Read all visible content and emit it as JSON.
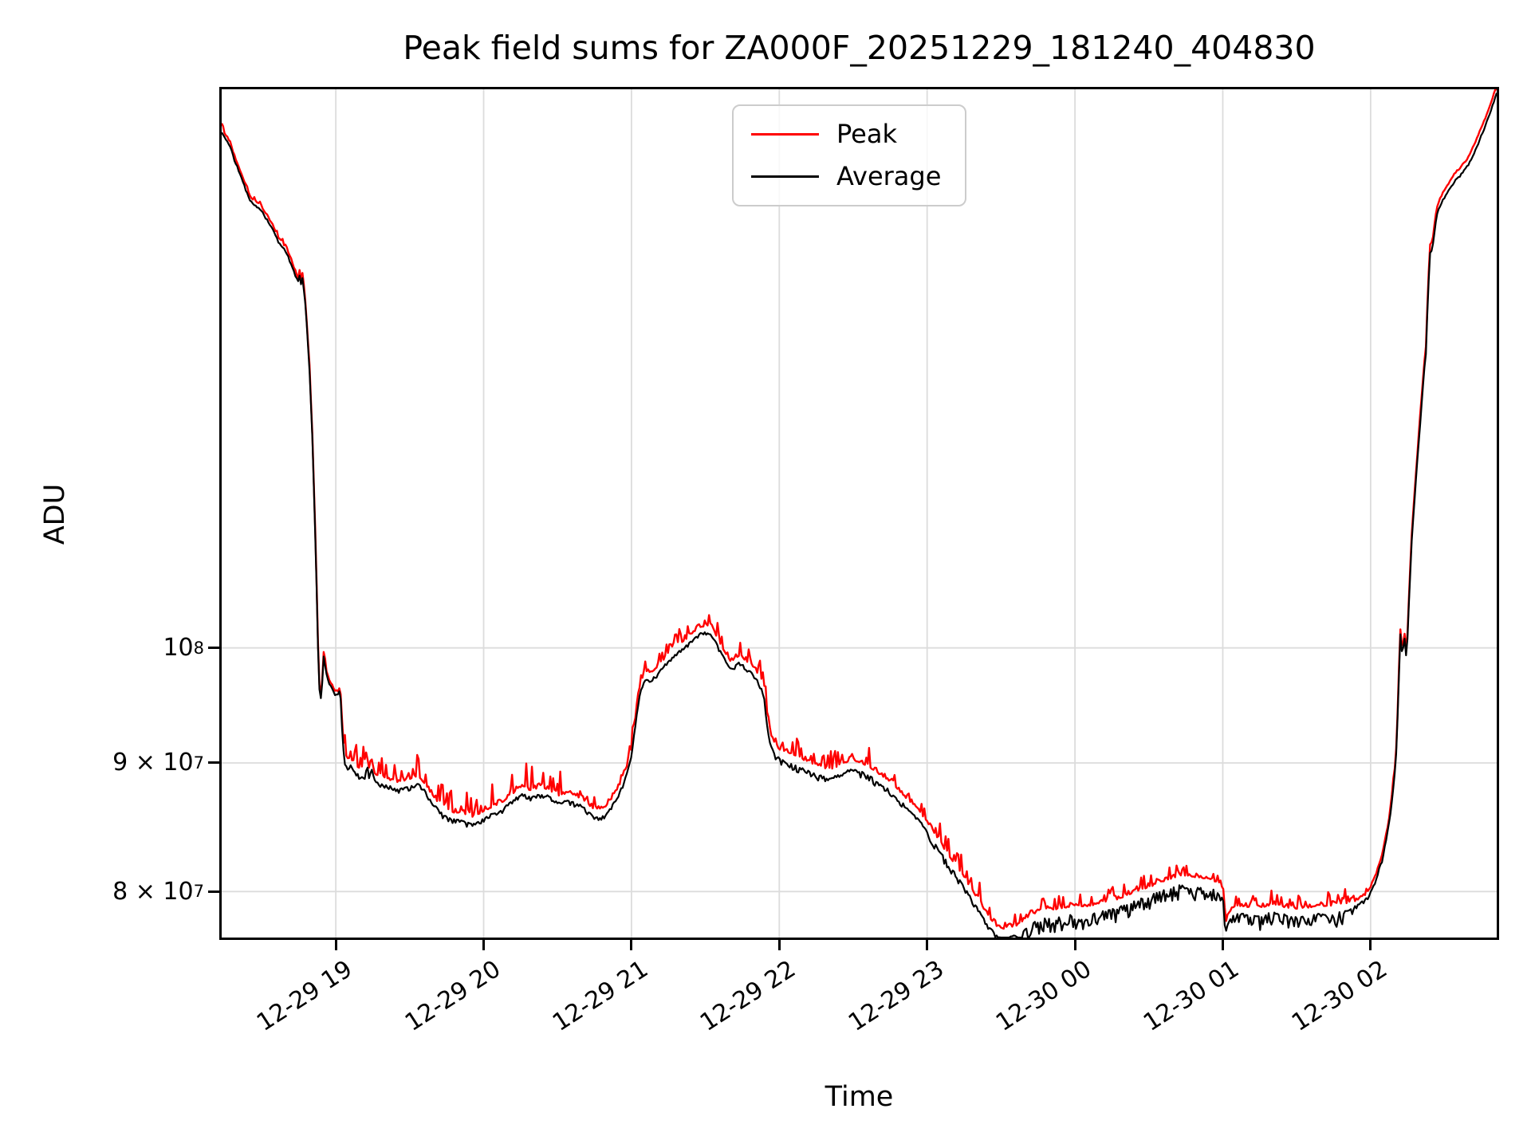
{
  "title": "Peak field sums for ZA000F_20251229_181240_404830",
  "colors": {
    "peak": "#ff0000",
    "average": "#000000",
    "grid": "#dcdcdc",
    "spine": "#000000",
    "legend_border": "#cccccc",
    "background": "#ffffff"
  },
  "chart_data": {
    "type": "line",
    "title": "Peak field sums for ZA000F_20251229_181240_404830",
    "xlabel": "Time",
    "ylabel": "ADU",
    "yscale": "log",
    "grid": true,
    "x_unit": "decimal hours (values >= 24 are Dec 30)",
    "value_unit": "1e7 ADU",
    "xlim": [
      18.228,
      26.853
    ],
    "ylim_1e7": [
      7.67,
      16.68
    ],
    "x_ticks": [
      {
        "t": 19,
        "label": "12-29 19"
      },
      {
        "t": 20,
        "label": "12-29 20"
      },
      {
        "t": 21,
        "label": "12-29 21"
      },
      {
        "t": 22,
        "label": "12-29 22"
      },
      {
        "t": 23,
        "label": "12-29 23"
      },
      {
        "t": 24,
        "label": "12-30 00"
      },
      {
        "t": 25,
        "label": "12-30 01"
      },
      {
        "t": 26,
        "label": "12-30 02"
      }
    ],
    "y_ticks": [
      {
        "value_1e7": 8,
        "base": "8 × 10",
        "exp": "7"
      },
      {
        "value_1e7": 9,
        "base": "9 × 10",
        "exp": "7"
      },
      {
        "value_1e7": 10,
        "base": "10",
        "exp": "8"
      }
    ],
    "legend": {
      "position": "upper center",
      "entries": [
        {
          "label": "Peak",
          "color": "#ff0000"
        },
        {
          "label": "Average",
          "color": "#000000"
        }
      ]
    },
    "series": [
      {
        "name": "Average",
        "color": "#000000",
        "trend_points_t_v1e7": [
          [
            18.228,
            16.05
          ],
          [
            18.26,
            15.92
          ],
          [
            18.287,
            15.83
          ],
          [
            18.31,
            15.66
          ],
          [
            18.34,
            15.51
          ],
          [
            18.37,
            15.33
          ],
          [
            18.4,
            15.18
          ],
          [
            18.42,
            15.07
          ],
          [
            18.45,
            15.01
          ],
          [
            18.48,
            14.97
          ],
          [
            18.5,
            14.92
          ],
          [
            18.53,
            14.82
          ],
          [
            18.56,
            14.72
          ],
          [
            18.585,
            14.62
          ],
          [
            18.61,
            14.52
          ],
          [
            18.64,
            14.44
          ],
          [
            18.67,
            14.36
          ],
          [
            18.69,
            14.26
          ],
          [
            18.71,
            14.16
          ],
          [
            18.725,
            14.08
          ],
          [
            18.745,
            13.99
          ],
          [
            18.755,
            14.07
          ],
          [
            18.765,
            13.96
          ],
          [
            18.775,
            14.04
          ],
          [
            18.79,
            13.81
          ],
          [
            18.8,
            13.55
          ],
          [
            18.81,
            13.26
          ],
          [
            18.825,
            12.8
          ],
          [
            18.84,
            12.2
          ],
          [
            18.855,
            11.4
          ],
          [
            18.87,
            10.6
          ],
          [
            18.88,
            10.0
          ],
          [
            18.89,
            9.62
          ],
          [
            18.9,
            9.56
          ],
          [
            18.91,
            9.7
          ],
          [
            18.92,
            10.0
          ],
          [
            18.93,
            9.8
          ],
          [
            18.95,
            9.7
          ],
          [
            18.97,
            9.65
          ],
          [
            18.99,
            9.6
          ],
          [
            19.01,
            9.58
          ],
          [
            19.025,
            9.62
          ],
          [
            19.035,
            9.55
          ],
          [
            19.045,
            9.2
          ],
          [
            19.06,
            9.0
          ],
          [
            19.075,
            8.97
          ],
          [
            19.095,
            8.99
          ],
          [
            19.12,
            8.95
          ],
          [
            19.15,
            8.91
          ],
          [
            19.18,
            8.88
          ],
          [
            19.2,
            8.87
          ],
          [
            19.21,
            9.06
          ],
          [
            19.22,
            8.89
          ],
          [
            19.245,
            8.97
          ],
          [
            19.26,
            8.86
          ],
          [
            19.3,
            8.83
          ],
          [
            19.36,
            8.81
          ],
          [
            19.42,
            8.79
          ],
          [
            19.5,
            8.81
          ],
          [
            19.56,
            8.83
          ],
          [
            19.6,
            8.78
          ],
          [
            19.66,
            8.67
          ],
          [
            19.72,
            8.59
          ],
          [
            19.78,
            8.55
          ],
          [
            19.86,
            8.54
          ],
          [
            19.92,
            8.51
          ],
          [
            19.96,
            8.53
          ],
          [
            20.02,
            8.57
          ],
          [
            20.08,
            8.6
          ],
          [
            20.14,
            8.64
          ],
          [
            20.2,
            8.7
          ],
          [
            20.26,
            8.76
          ],
          [
            20.32,
            8.72
          ],
          [
            20.38,
            8.75
          ],
          [
            20.44,
            8.73
          ],
          [
            20.5,
            8.68
          ],
          [
            20.56,
            8.7
          ],
          [
            20.62,
            8.68
          ],
          [
            20.68,
            8.64
          ],
          [
            20.74,
            8.58
          ],
          [
            20.8,
            8.56
          ],
          [
            20.85,
            8.63
          ],
          [
            20.9,
            8.72
          ],
          [
            20.94,
            8.82
          ],
          [
            20.97,
            8.92
          ],
          [
            21.0,
            9.06
          ],
          [
            21.02,
            9.26
          ],
          [
            21.045,
            9.5
          ],
          [
            21.06,
            9.62
          ],
          [
            21.08,
            9.69
          ],
          [
            21.11,
            9.72
          ],
          [
            21.15,
            9.73
          ],
          [
            21.18,
            9.77
          ],
          [
            21.21,
            9.82
          ],
          [
            21.25,
            9.88
          ],
          [
            21.29,
            9.93
          ],
          [
            21.33,
            9.98
          ],
          [
            21.37,
            10.02
          ],
          [
            21.42,
            10.08
          ],
          [
            21.46,
            10.13
          ],
          [
            21.5,
            10.14
          ],
          [
            21.54,
            10.13
          ],
          [
            21.58,
            10.03
          ],
          [
            21.62,
            9.93
          ],
          [
            21.67,
            9.81
          ],
          [
            21.7,
            9.84
          ],
          [
            21.73,
            9.87
          ],
          [
            21.76,
            9.84
          ],
          [
            21.79,
            9.8
          ],
          [
            21.83,
            9.75
          ],
          [
            21.86,
            9.7
          ],
          [
            21.895,
            9.58
          ],
          [
            21.92,
            9.32
          ],
          [
            21.945,
            9.14
          ],
          [
            21.97,
            9.07
          ],
          [
            22.0,
            9.04
          ],
          [
            22.05,
            9.01
          ],
          [
            22.1,
            8.99
          ],
          [
            22.15,
            8.96
          ],
          [
            22.21,
            8.93
          ],
          [
            22.27,
            8.9
          ],
          [
            22.33,
            8.87
          ],
          [
            22.4,
            8.9
          ],
          [
            22.48,
            8.95
          ],
          [
            22.53,
            8.94
          ],
          [
            22.6,
            8.9
          ],
          [
            22.66,
            8.85
          ],
          [
            22.71,
            8.81
          ],
          [
            22.77,
            8.76
          ],
          [
            22.82,
            8.69
          ],
          [
            22.88,
            8.62
          ],
          [
            22.94,
            8.55
          ],
          [
            23.0,
            8.46
          ],
          [
            23.07,
            8.33
          ],
          [
            23.14,
            8.21
          ],
          [
            23.22,
            8.09
          ],
          [
            23.29,
            7.97
          ],
          [
            23.36,
            7.85
          ],
          [
            23.42,
            7.75
          ],
          [
            23.47,
            7.69
          ],
          [
            23.52,
            7.67
          ],
          [
            23.58,
            7.68
          ],
          [
            23.64,
            7.71
          ],
          [
            23.7,
            7.77
          ],
          [
            23.79,
            7.8
          ],
          [
            23.88,
            7.81
          ],
          [
            23.99,
            7.83
          ],
          [
            24.1,
            7.83
          ],
          [
            24.19,
            7.86
          ],
          [
            24.29,
            7.88
          ],
          [
            24.4,
            7.93
          ],
          [
            24.51,
            7.97
          ],
          [
            24.62,
            8.02
          ],
          [
            24.73,
            8.05
          ],
          [
            24.83,
            8.04
          ],
          [
            24.91,
            8.02
          ],
          [
            24.98,
            8.0
          ],
          [
            25.005,
            7.95
          ],
          [
            25.02,
            7.72
          ],
          [
            25.04,
            7.79
          ],
          [
            25.07,
            7.83
          ],
          [
            25.12,
            7.84
          ],
          [
            25.18,
            7.83
          ],
          [
            25.24,
            7.82
          ],
          [
            25.3,
            7.84
          ],
          [
            25.36,
            7.85
          ],
          [
            25.42,
            7.83
          ],
          [
            25.48,
            7.82
          ],
          [
            25.54,
            7.82
          ],
          [
            25.6,
            7.83
          ],
          [
            25.66,
            7.84
          ],
          [
            25.72,
            7.84
          ],
          [
            25.78,
            7.85
          ],
          [
            25.84,
            7.86
          ],
          [
            25.9,
            7.9
          ],
          [
            25.96,
            7.94
          ],
          [
            26.0,
            8.0
          ],
          [
            26.04,
            8.1
          ],
          [
            26.08,
            8.25
          ],
          [
            26.12,
            8.48
          ],
          [
            26.15,
            8.75
          ],
          [
            26.17,
            9.0
          ],
          [
            26.185,
            9.45
          ],
          [
            26.2,
            10.15
          ],
          [
            26.215,
            9.92
          ],
          [
            26.228,
            10.12
          ],
          [
            26.243,
            9.88
          ],
          [
            26.26,
            10.45
          ],
          [
            26.28,
            11.1
          ],
          [
            26.3,
            11.55
          ],
          [
            26.32,
            11.95
          ],
          [
            26.34,
            12.4
          ],
          [
            26.36,
            12.85
          ],
          [
            26.375,
            13.15
          ],
          [
            26.385,
            13.65
          ],
          [
            26.395,
            14.1
          ],
          [
            26.405,
            14.45
          ],
          [
            26.415,
            14.38
          ],
          [
            26.428,
            14.58
          ],
          [
            26.445,
            14.85
          ],
          [
            26.465,
            14.97
          ],
          [
            26.49,
            15.08
          ],
          [
            26.52,
            15.18
          ],
          [
            26.55,
            15.28
          ],
          [
            26.58,
            15.37
          ],
          [
            26.61,
            15.43
          ],
          [
            26.645,
            15.52
          ],
          [
            26.68,
            15.65
          ],
          [
            26.72,
            15.85
          ],
          [
            26.76,
            16.05
          ],
          [
            26.8,
            16.28
          ],
          [
            26.83,
            16.48
          ],
          [
            26.853,
            16.62
          ]
        ]
      },
      {
        "name": "Peak",
        "color": "#ff0000",
        "derived_from": "Average",
        "relation": "Peak sits slightly above Average (gap per noise band) with an upward spike fringe"
      }
    ],
    "noise_bands": [
      {
        "t0": 18.22,
        "t1": 18.79,
        "black_amp": 0.0015,
        "red_gap": 0.003,
        "red_amp": 0.002,
        "spike_p": 0.12,
        "spike_amp": 0.005
      },
      {
        "t0": 18.79,
        "t1": 19.04,
        "black_amp": 0.002,
        "red_gap": 0.002,
        "red_amp": 0.002,
        "spike_p": 0.1,
        "spike_amp": 0.005
      },
      {
        "t0": 19.04,
        "t1": 20.97,
        "black_amp": 0.004,
        "red_gap": 0.006,
        "red_amp": 0.004,
        "spike_p": 0.3,
        "spike_amp": 0.022
      },
      {
        "t0": 20.97,
        "t1": 21.86,
        "black_amp": 0.003,
        "red_gap": 0.006,
        "red_amp": 0.004,
        "spike_p": 0.3,
        "spike_amp": 0.015
      },
      {
        "t0": 21.86,
        "t1": 23.47,
        "black_amp": 0.006,
        "red_gap": 0.008,
        "red_amp": 0.004,
        "spike_p": 0.3,
        "spike_amp": 0.016
      },
      {
        "t0": 23.47,
        "t1": 25.01,
        "black_amp": 0.013,
        "red_gap": 0.008,
        "red_amp": 0.004,
        "spike_p": 0.3,
        "spike_amp": 0.012
      },
      {
        "t0": 25.01,
        "t1": 25.88,
        "black_amp": 0.013,
        "red_gap": 0.007,
        "red_amp": 0.004,
        "spike_p": 0.28,
        "spike_amp": 0.01
      },
      {
        "t0": 25.88,
        "t1": 26.38,
        "black_amp": 0.003,
        "red_gap": 0.004,
        "red_amp": 0.002,
        "spike_p": 0.12,
        "spike_amp": 0.006
      },
      {
        "t0": 26.38,
        "t1": 26.86,
        "black_amp": 0.0015,
        "red_gap": 0.006,
        "red_amp": 0.0015,
        "spike_p": 0.0,
        "spike_amp": 0.0
      }
    ]
  }
}
